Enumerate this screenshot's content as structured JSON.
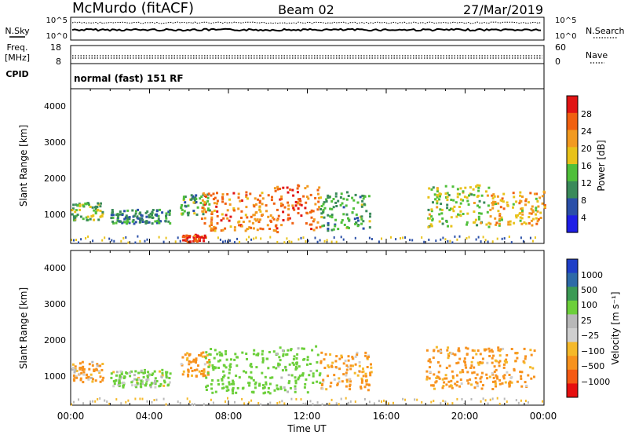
{
  "header": {
    "station": "McMurdo (fitACF)",
    "beam": "Beam 02",
    "date": "27/Mar/2019"
  },
  "noise_panel": {
    "left_label": "N.Sky",
    "right_label": "N.Search",
    "left_ticks": [
      "10^5",
      "10^0"
    ],
    "right_ticks": [
      "10^5",
      "10^0"
    ]
  },
  "freq_panel": {
    "left_label_1": "Freq.",
    "left_label_2": "[MHz]",
    "right_label": "Nave",
    "left_ticks": [
      "18",
      "8"
    ],
    "right_ticks": [
      "60",
      "0"
    ],
    "cpid_label": "CPID",
    "cpid_text": "normal (fast) 151 RF"
  },
  "x_axis": {
    "label": "Time UT",
    "ticks": [
      "00:00",
      "04:00",
      "08:00",
      "12:00",
      "16:00",
      "20:00",
      "00:00"
    ]
  },
  "colors": {
    "power": [
      "#1e1ee6",
      "#2a4fa8",
      "#3a8a5a",
      "#4fbf3a",
      "#e8c21a",
      "#f29a20",
      "#f06010",
      "#e11414"
    ],
    "velocity": [
      "#e60f0f",
      "#f55a14",
      "#f7921e",
      "#f5b92a",
      "#cfcfcf",
      "#b8b8b8",
      "#6ccf3a",
      "#3b9a55",
      "#2d6aa8",
      "#1f3fc8"
    ]
  },
  "chart_data": [
    {
      "type": "heatmap",
      "title": "",
      "ylabel": "Slant Range [km]",
      "xlabel": "",
      "ylim": [
        180,
        4550
      ],
      "xlim_hours": [
        0,
        24
      ],
      "y_ticks": [
        "1000",
        "2000",
        "3000",
        "4000"
      ],
      "colorbar": {
        "label": "Power [dB]",
        "range": [
          0,
          32
        ],
        "ticks": [
          "4",
          "8",
          "12",
          "16",
          "20",
          "24",
          "28"
        ]
      },
      "echo_regions": [
        {
          "t_start": 0.0,
          "t_end": 1.6,
          "range_center_km": 1100,
          "range_width_km": 250,
          "value_db": 14
        },
        {
          "t_start": 2.0,
          "t_end": 5.0,
          "range_center_km": 950,
          "range_width_km": 200,
          "value_db": 10
        },
        {
          "t_start": 5.5,
          "t_end": 7.0,
          "range_center_km": 1300,
          "range_width_km": 300,
          "value_db": 12
        },
        {
          "t_start": 6.6,
          "t_end": 10.3,
          "range_center_km": 1100,
          "range_width_km": 550,
          "value_db": 24
        },
        {
          "t_start": 10.3,
          "t_end": 12.6,
          "range_center_km": 1150,
          "range_width_km": 700,
          "value_db": 26
        },
        {
          "t_start": 12.6,
          "t_end": 15.2,
          "range_center_km": 1100,
          "range_width_km": 550,
          "value_db": 12
        },
        {
          "t_start": 5.6,
          "t_end": 6.8,
          "range_center_km": 320,
          "range_width_km": 120,
          "value_db": 28
        },
        {
          "t_start": 18.0,
          "t_end": 21.2,
          "range_center_km": 1250,
          "range_width_km": 600,
          "value_db": 16
        },
        {
          "t_start": 21.2,
          "t_end": 24.0,
          "range_center_km": 1200,
          "range_width_km": 500,
          "value_db": 20
        }
      ]
    },
    {
      "type": "heatmap",
      "title": "",
      "ylabel": "Slant Range [km]",
      "xlabel": "Time UT",
      "ylim": [
        180,
        4550
      ],
      "xlim_hours": [
        0,
        24
      ],
      "y_ticks": [
        "1000",
        "2000",
        "3000",
        "4000"
      ],
      "colorbar": {
        "label": "Velocity [m s⁻¹]",
        "ticks": [
          "1000",
          "500",
          "100",
          "25",
          "−25",
          "−100",
          "−500",
          "−1000"
        ]
      },
      "echo_regions": [
        {
          "t_start": 0.0,
          "t_end": 1.6,
          "range_center_km": 1150,
          "range_width_km": 300,
          "value_ms": -150
        },
        {
          "t_start": 2.0,
          "t_end": 5.0,
          "range_center_km": 950,
          "range_width_km": 250,
          "value_ms": 150
        },
        {
          "t_start": 5.5,
          "t_end": 7.0,
          "range_center_km": 1350,
          "range_width_km": 350,
          "value_ms": -200
        },
        {
          "t_start": 6.8,
          "t_end": 10.3,
          "range_center_km": 1150,
          "range_width_km": 650,
          "value_ms": 300
        },
        {
          "t_start": 10.3,
          "t_end": 12.6,
          "range_center_km": 1200,
          "range_width_km": 700,
          "value_ms": 250
        },
        {
          "t_start": 12.6,
          "t_end": 15.2,
          "range_center_km": 1150,
          "range_width_km": 550,
          "value_ms": -180
        },
        {
          "t_start": 18.0,
          "t_end": 23.5,
          "range_center_km": 1250,
          "range_width_km": 600,
          "value_ms": -200
        }
      ]
    }
  ]
}
